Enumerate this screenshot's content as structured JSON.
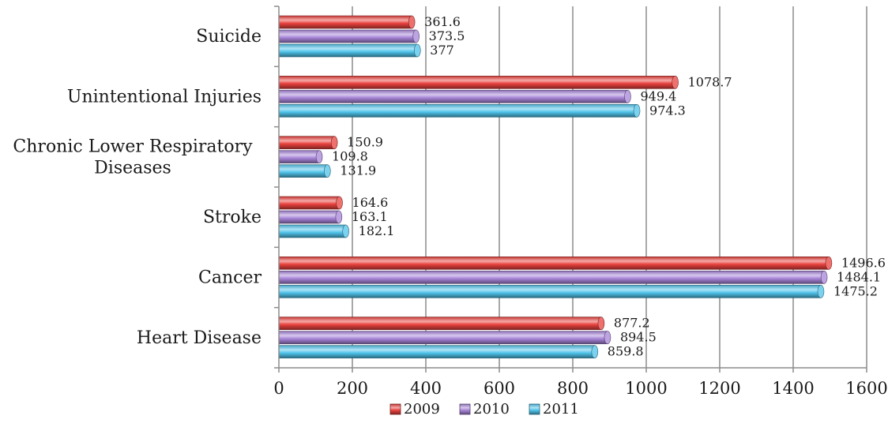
{
  "chart_data": {
    "type": "bar",
    "orientation": "horizontal",
    "style": "3d-cylinder",
    "categories": [
      "Heart Disease",
      "Cancer",
      "Stroke",
      "Chronic Lower Respiratory Diseases",
      "Unintentional Injuries",
      "Suicide"
    ],
    "series": [
      {
        "name": "2009",
        "color": "#e8413d",
        "values": [
          877.2,
          1496.6,
          164.6,
          150.9,
          1078.7,
          361.6
        ]
      },
      {
        "name": "2010",
        "color": "#a784d8",
        "values": [
          894.5,
          1484.1,
          163.1,
          109.8,
          949.4,
          373.5
        ]
      },
      {
        "name": "2011",
        "color": "#4fc3ea",
        "values": [
          859.8,
          1475.2,
          182.1,
          131.9,
          974.3,
          377
        ]
      }
    ],
    "data_labels": [
      [
        "877.2",
        "1496.6",
        "164.6",
        "150.9",
        "1078.7",
        "361.6"
      ],
      [
        "894.5",
        "1484.1",
        "163.1",
        "109.8",
        "949.4",
        "373.5"
      ],
      [
        "859.8",
        "1475.2",
        "182.1",
        "131.9",
        "974.3",
        "377"
      ]
    ],
    "xlim": [
      0,
      1600
    ],
    "xticks": [
      "0",
      "200",
      "400",
      "600",
      "800",
      "1000",
      "1200",
      "1400",
      "1600"
    ],
    "grid": "vertical",
    "legend": {
      "position": "bottom"
    },
    "title": "",
    "xlabel": "",
    "ylabel": ""
  }
}
